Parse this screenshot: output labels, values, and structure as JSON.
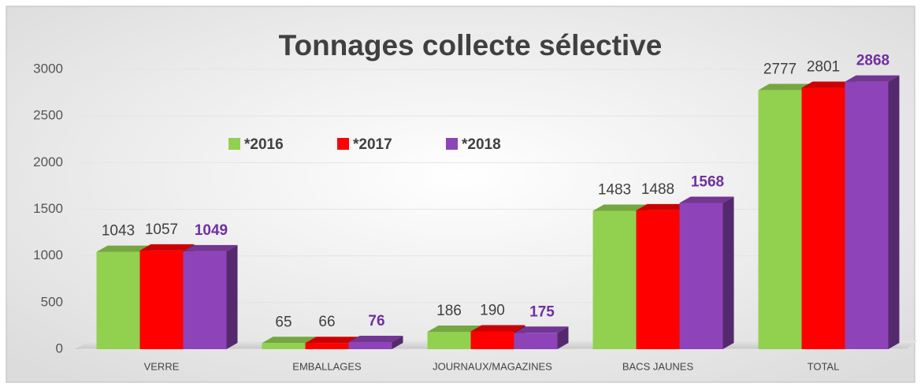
{
  "chart_data": {
    "type": "bar",
    "title": "Tonnages collecte sélective",
    "categories": [
      "VERRE",
      "EMBALLAGES",
      "JOURNAUX/MAGAZINES",
      "BACS JAUNES",
      "TOTAL"
    ],
    "series": [
      {
        "name": "*2016",
        "color": "#92d050",
        "values": [
          1043,
          65,
          186,
          1483,
          2777
        ]
      },
      {
        "name": "*2017",
        "color": "#ff0000",
        "values": [
          1057,
          66,
          190,
          1488,
          2801
        ]
      },
      {
        "name": "*2018",
        "color": "#8e44b8",
        "values": [
          1049,
          76,
          175,
          1568,
          2868
        ]
      }
    ],
    "ylim": [
      0,
      3000
    ],
    "yticks": [
      0,
      500,
      1000,
      1500,
      2000,
      2500,
      3000
    ],
    "legend": "upper left"
  }
}
